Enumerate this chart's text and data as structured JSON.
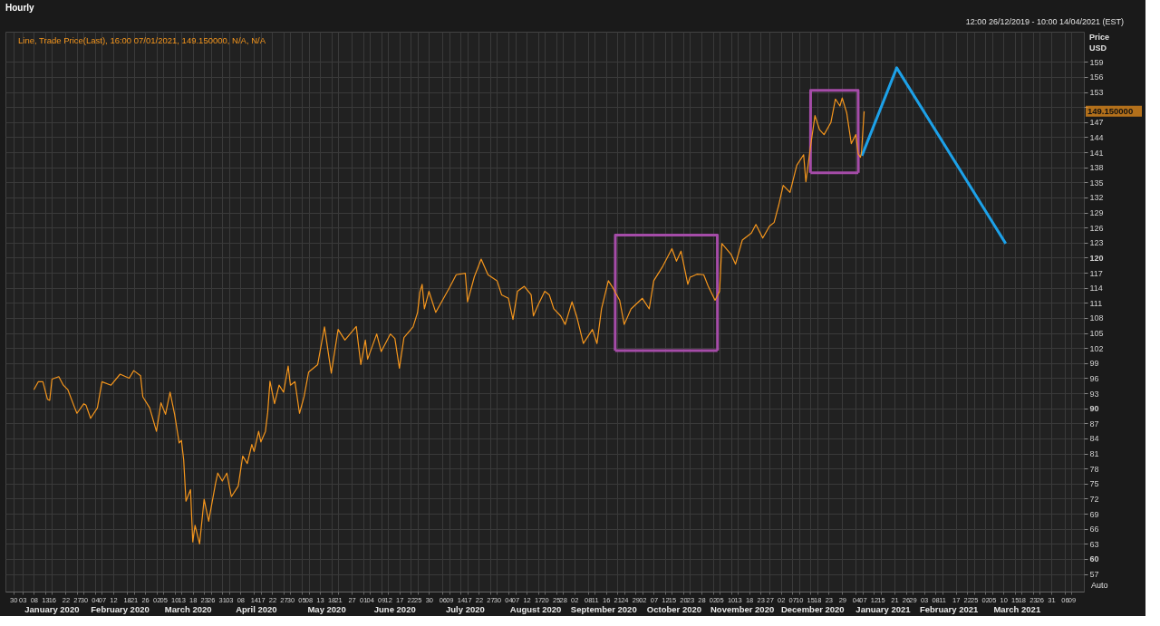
{
  "chart_data": {
    "type": "line",
    "title": "Hourly",
    "ylabel": "Price\nUSD",
    "annotations": [
      "12:00 26/12/2019 - 10:00 14/04/2021 (EST)",
      "149.150000",
      "Auto"
    ],
    "legend": "top left",
    "grid": true,
    "line_style": "solid",
    "marker": "none",
    "xlim": [
      "2019-12-26T12:00",
      "2021-04-14T10:00"
    ],
    "ylim": [
      53.5,
      165.0
    ],
    "yticks": [
      57,
      60,
      63,
      66,
      69,
      72,
      75,
      78,
      81,
      84,
      87,
      90,
      93,
      96,
      99,
      102,
      105,
      108,
      111,
      114,
      117,
      120,
      123,
      126,
      129,
      132,
      135,
      138,
      141,
      144,
      147,
      {
        "value": 150,
        "label": null
      },
      153,
      156,
      159
    ],
    "xticks": [
      {
        "value": "2019-12-30",
        "label": "30"
      },
      {
        "value": "2020-01-03",
        "label": "03"
      },
      {
        "value": "2020-01-08",
        "label": "08"
      },
      {
        "value": "2020-01-13",
        "label": "13"
      },
      {
        "value": "2020-01-16",
        "label": "16"
      },
      {
        "value": "2020-01-22",
        "label": "22"
      },
      {
        "value": "2020-01-27",
        "label": "27"
      },
      {
        "value": "2020-01-30",
        "label": "30"
      },
      {
        "value": "2020-02-04",
        "label": "04"
      },
      {
        "value": "2020-02-07",
        "label": "07"
      },
      {
        "value": "2020-02-12",
        "label": "12"
      },
      {
        "value": "2020-02-18",
        "label": "18"
      },
      {
        "value": "2020-02-21",
        "label": "21"
      },
      {
        "value": "2020-02-26",
        "label": "26"
      },
      {
        "value": "2020-03-02",
        "label": "02"
      },
      {
        "value": "2020-03-05",
        "label": "05"
      },
      {
        "value": "2020-03-10",
        "label": "10"
      },
      {
        "value": "2020-03-13",
        "label": "13"
      },
      {
        "value": "2020-03-18",
        "label": "18"
      },
      {
        "value": "2020-03-23",
        "label": "23"
      },
      {
        "value": "2020-03-26",
        "label": "26"
      },
      {
        "value": "2020-03-31",
        "label": "31"
      },
      {
        "value": "2020-04-03",
        "label": "03"
      },
      {
        "value": "2020-04-08",
        "label": "08"
      },
      {
        "value": "2020-04-14",
        "label": "14"
      },
      {
        "value": "2020-04-17",
        "label": "17"
      },
      {
        "value": "2020-04-22",
        "label": "22"
      },
      {
        "value": "2020-04-27",
        "label": "27"
      },
      {
        "value": "2020-04-30",
        "label": "30"
      },
      {
        "value": "2020-05-05",
        "label": "05"
      },
      {
        "value": "2020-05-08",
        "label": "08"
      },
      {
        "value": "2020-05-13",
        "label": "13"
      },
      {
        "value": "2020-05-18",
        "label": "18"
      },
      {
        "value": "2020-05-21",
        "label": "21"
      },
      {
        "value": "2020-05-27",
        "label": "27"
      },
      {
        "value": "2020-06-01",
        "label": "01"
      },
      {
        "value": "2020-06-04",
        "label": "04"
      },
      {
        "value": "2020-06-09",
        "label": "09"
      },
      {
        "value": "2020-06-12",
        "label": "12"
      },
      {
        "value": "2020-06-17",
        "label": "17"
      },
      {
        "value": "2020-06-22",
        "label": "22"
      },
      {
        "value": "2020-06-25",
        "label": "25"
      },
      {
        "value": "2020-06-30",
        "label": "30"
      },
      {
        "value": "2020-07-06",
        "label": "06"
      },
      {
        "value": "2020-07-09",
        "label": "09"
      },
      {
        "value": "2020-07-14",
        "label": "14"
      },
      {
        "value": "2020-07-17",
        "label": "17"
      },
      {
        "value": "2020-07-22",
        "label": "22"
      },
      {
        "value": "2020-07-27",
        "label": "27"
      },
      {
        "value": "2020-07-30",
        "label": "30"
      },
      {
        "value": "2020-08-04",
        "label": "04"
      },
      {
        "value": "2020-08-07",
        "label": "07"
      },
      {
        "value": "2020-08-12",
        "label": "12"
      },
      {
        "value": "2020-08-17",
        "label": "17"
      },
      {
        "value": "2020-08-20",
        "label": "20"
      },
      {
        "value": "2020-08-25",
        "label": "25"
      },
      {
        "value": "2020-08-28",
        "label": "28"
      },
      {
        "value": "2020-09-02",
        "label": "02"
      },
      {
        "value": "2020-09-08",
        "label": "08"
      },
      {
        "value": "2020-09-11",
        "label": "11"
      },
      {
        "value": "2020-09-16",
        "label": "16"
      },
      {
        "value": "2020-09-21",
        "label": "21"
      },
      {
        "value": "2020-09-24",
        "label": "24"
      },
      {
        "value": "2020-09-29",
        "label": "29"
      },
      {
        "value": "2020-10-02",
        "label": "02"
      },
      {
        "value": "2020-10-07",
        "label": "07"
      },
      {
        "value": "2020-10-12",
        "label": "12"
      },
      {
        "value": "2020-10-15",
        "label": "15"
      },
      {
        "value": "2020-10-20",
        "label": "20"
      },
      {
        "value": "2020-10-23",
        "label": "23"
      },
      {
        "value": "2020-10-28",
        "label": "28"
      },
      {
        "value": "2020-11-02",
        "label": "02"
      },
      {
        "value": "2020-11-05",
        "label": "05"
      },
      {
        "value": "2020-11-10",
        "label": "10"
      },
      {
        "value": "2020-11-13",
        "label": "13"
      },
      {
        "value": "2020-11-18",
        "label": "18"
      },
      {
        "value": "2020-11-23",
        "label": "23"
      },
      {
        "value": "2020-11-27",
        "label": "27"
      },
      {
        "value": "2020-12-02",
        "label": "02"
      },
      {
        "value": "2020-12-07",
        "label": "07"
      },
      {
        "value": "2020-12-10",
        "label": "10"
      },
      {
        "value": "2020-12-15",
        "label": "15"
      },
      {
        "value": "2020-12-18",
        "label": "18"
      },
      {
        "value": "2020-12-23",
        "label": "23"
      },
      {
        "value": "2020-12-29",
        "label": "29"
      },
      {
        "value": "2021-01-04",
        "label": "04"
      },
      {
        "value": "2021-01-07",
        "label": "07"
      },
      {
        "value": "2021-01-12",
        "label": "12"
      },
      {
        "value": "2021-01-15",
        "label": "15"
      },
      {
        "value": "2021-01-21",
        "label": "21"
      },
      {
        "value": "2021-01-26",
        "label": "26"
      },
      {
        "value": "2021-01-29",
        "label": "29"
      },
      {
        "value": "2021-02-03",
        "label": "03"
      },
      {
        "value": "2021-02-08",
        "label": "08"
      },
      {
        "value": "2021-02-11",
        "label": "11"
      },
      {
        "value": "2021-02-17",
        "label": "17"
      },
      {
        "value": "2021-02-22",
        "label": "22"
      },
      {
        "value": "2021-02-25",
        "label": "25"
      },
      {
        "value": "2021-03-02",
        "label": "02"
      },
      {
        "value": "2021-03-05",
        "label": "05"
      },
      {
        "value": "2021-03-10",
        "label": "10"
      },
      {
        "value": "2021-03-15",
        "label": "15"
      },
      {
        "value": "2021-03-18",
        "label": "18"
      },
      {
        "value": "2021-03-23",
        "label": "23"
      },
      {
        "value": "2021-03-26",
        "label": "26"
      },
      {
        "value": "2021-03-31",
        "label": "31"
      },
      {
        "value": "2021-04-06",
        "label": "06"
      },
      {
        "value": "2021-04-09",
        "label": "09"
      }
    ],
    "x2lim": [
      "2019-12-26T12:00",
      "2021-04-14T10:00"
    ],
    "x2ticks": [
      {
        "value": "2020-01-16",
        "label": "January 2020"
      },
      {
        "value": "2020-02-15",
        "label": "February 2020"
      },
      {
        "value": "2020-03-16",
        "label": "March 2020"
      },
      {
        "value": "2020-04-15",
        "label": "April 2020"
      },
      {
        "value": "2020-05-16",
        "label": "May 2020"
      },
      {
        "value": "2020-06-15",
        "label": "June 2020"
      },
      {
        "value": "2020-07-16",
        "label": "July 2020"
      },
      {
        "value": "2020-08-16",
        "label": "August 2020"
      },
      {
        "value": "2020-09-15",
        "label": "September 2020"
      },
      {
        "value": "2020-10-16",
        "label": "October 2020"
      },
      {
        "value": "2020-11-15",
        "label": "November 2020"
      },
      {
        "value": "2020-12-16",
        "label": "December 2020"
      },
      {
        "value": "2021-01-16",
        "label": "January 2021"
      },
      {
        "value": "2021-02-14",
        "label": "February 2021"
      },
      {
        "value": "2021-03-16",
        "label": "March 2021"
      }
    ],
    "series": [
      {
        "name": "Line, Trade Price(Last), 16:00 07/01/2021, 149.150000, N/A, N/A",
        "color": "#f5961d",
        "x": [
          "2020-01-08",
          "2020-01-10",
          "2020-01-12",
          "2020-01-14",
          "2020-01-15",
          "2020-01-16",
          "2020-01-19",
          "2020-01-21",
          "2020-01-23",
          "2020-01-26",
          "2020-01-27",
          "2020-01-30",
          "2020-01-31",
          "2020-02-02",
          "2020-02-05",
          "2020-02-07",
          "2020-02-11",
          "2020-02-15",
          "2020-02-19",
          "2020-02-21",
          "2020-02-24",
          "2020-02-25",
          "2020-02-28",
          "2020-03-02",
          "2020-03-04",
          "2020-03-06",
          "2020-03-08",
          "2020-03-10",
          "2020-03-12",
          "2020-03-13",
          "2020-03-14",
          "2020-03-15",
          "2020-03-17",
          "2020-03-18",
          "2020-03-19",
          "2020-03-21",
          "2020-03-23",
          "2020-03-25",
          "2020-03-28",
          "2020-03-29",
          "2020-03-31",
          "2020-04-02",
          "2020-04-04",
          "2020-04-07",
          "2020-04-09",
          "2020-04-11",
          "2020-04-13",
          "2020-04-14",
          "2020-04-16",
          "2020-04-17",
          "2020-04-19",
          "2020-04-20",
          "2020-04-21",
          "2020-04-23",
          "2020-04-25",
          "2020-04-27",
          "2020-04-29",
          "2020-04-30",
          "2020-05-02",
          "2020-05-04",
          "2020-05-06",
          "2020-05-08",
          "2020-05-12",
          "2020-05-15",
          "2020-05-18",
          "2020-05-21",
          "2020-05-24",
          "2020-05-29",
          "2020-05-31",
          "2020-06-02",
          "2020-06-03",
          "2020-06-07",
          "2020-06-09",
          "2020-06-13",
          "2020-06-15",
          "2020-06-17",
          "2020-06-19",
          "2020-06-23",
          "2020-06-25",
          "2020-06-26",
          "2020-06-27",
          "2020-06-28",
          "2020-06-30",
          "2020-07-03",
          "2020-07-09",
          "2020-07-12",
          "2020-07-16",
          "2020-07-17",
          "2020-07-20",
          "2020-07-23",
          "2020-07-26",
          "2020-07-30",
          "2020-08-01",
          "2020-08-04",
          "2020-08-06",
          "2020-08-08",
          "2020-08-11",
          "2020-08-14",
          "2020-08-15",
          "2020-08-17",
          "2020-08-20",
          "2020-08-22",
          "2020-08-24",
          "2020-08-27",
          "2020-08-29",
          "2020-09-01",
          "2020-09-03",
          "2020-09-06",
          "2020-09-10",
          "2020-09-12",
          "2020-09-14",
          "2020-09-17",
          "2020-09-19",
          "2020-09-22",
          "2020-09-24",
          "2020-09-27",
          "2020-10-02",
          "2020-10-05",
          "2020-10-07",
          "2020-10-11",
          "2020-10-15",
          "2020-10-17",
          "2020-10-19",
          "2020-10-22",
          "2020-10-23",
          "2020-10-26",
          "2020-10-29",
          "2020-10-31",
          "2020-11-03",
          "2020-11-05",
          "2020-11-06",
          "2020-11-10",
          "2020-11-12",
          "2020-11-15",
          "2020-11-19",
          "2020-11-21",
          "2020-11-24",
          "2020-11-27",
          "2020-11-29",
          "2020-12-01",
          "2020-12-03",
          "2020-12-06",
          "2020-12-09",
          "2020-12-12",
          "2020-12-13",
          "2020-12-15",
          "2020-12-17",
          "2020-12-19",
          "2020-12-21",
          "2020-12-24",
          "2020-12-26",
          "2020-12-28",
          "2020-12-29",
          "2020-12-31",
          "2021-01-02",
          "2021-01-04",
          "2021-01-05",
          "2021-01-06",
          "2021-01-06T12:00",
          "2021-01-07T10:00",
          "2021-01-07T16:00"
        ],
        "values": [
          93.7,
          95.3,
          95.3,
          91.8,
          91.6,
          95.8,
          96.3,
          94.6,
          93.7,
          90.1,
          89.0,
          90.9,
          90.6,
          88.0,
          90.1,
          95.3,
          94.6,
          96.8,
          96.0,
          97.5,
          96.5,
          92.3,
          90.1,
          85.4,
          91.1,
          88.8,
          93.2,
          88.8,
          83.1,
          83.6,
          79.7,
          71.5,
          73.8,
          63.4,
          66.7,
          63.0,
          71.9,
          67.5,
          75.0,
          77.1,
          75.5,
          77.1,
          72.4,
          74.5,
          80.5,
          79.0,
          82.8,
          81.4,
          85.4,
          83.3,
          85.4,
          89.2,
          95.4,
          90.9,
          94.6,
          93.2,
          98.4,
          94.6,
          95.3,
          89.0,
          92.3,
          97.2,
          98.7,
          106.2,
          97.0,
          105.7,
          103.6,
          106.3,
          98.7,
          103.6,
          99.8,
          104.8,
          101.3,
          104.8,
          103.9,
          98.0,
          104.1,
          106.2,
          109.1,
          113.1,
          114.7,
          109.8,
          113.3,
          109.1,
          114.0,
          116.6,
          116.9,
          111.2,
          116.2,
          119.7,
          116.6,
          115.4,
          112.6,
          111.9,
          107.7,
          113.3,
          114.3,
          112.6,
          108.4,
          110.5,
          113.3,
          112.6,
          109.8,
          108.4,
          106.7,
          111.2,
          108.4,
          102.9,
          105.7,
          102.9,
          109.8,
          115.4,
          114.0,
          111.5,
          106.7,
          109.8,
          111.9,
          109.8,
          115.4,
          118.3,
          121.8,
          119.3,
          121.3,
          114.7,
          116.1,
          116.7,
          116.6,
          114.3,
          111.5,
          113.3,
          122.8,
          120.7,
          118.7,
          123.5,
          124.9,
          126.6,
          123.9,
          126.3,
          127.0,
          130.4,
          134.4,
          133.0,
          138.4,
          140.5,
          135.1,
          142.0,
          148.3,
          145.5,
          144.5,
          146.9,
          151.6,
          150.2,
          151.8,
          148.8,
          142.7,
          144.5,
          140.7,
          140.0,
          141.0,
          147.6,
          149.15
        ]
      },
      {
        "color": "#1da1e8",
        "x": [
          "2021-01-06T16:00",
          "2021-01-22",
          "2021-03-11"
        ],
        "values": [
          140.3,
          157.8,
          122.8
        ]
      },
      {
        "color": "#a54ca8",
        "x": [
          "2020-09-20",
          "2020-09-20T02:00",
          "2020-11-04",
          "2020-11-04T02:00"
        ],
        "values": [
          101.5,
          124.5,
          124.5,
          101.5
        ]
      },
      {
        "color": "#a54ca8",
        "x": [
          "2020-09-20",
          "2020-11-04T02:00"
        ],
        "values": [
          101.5,
          101.5
        ]
      },
      {
        "color": "#a54ca8",
        "x": [
          "2020-12-15",
          "2020-12-15T02:00",
          "2021-01-05",
          "2021-01-05T02:00"
        ],
        "values": [
          136.9,
          153.3,
          153.3,
          136.9
        ]
      },
      {
        "color": "#a54ca8",
        "x": [
          "2020-12-15",
          "2021-01-05T02:00"
        ],
        "values": [
          136.9,
          136.9
        ]
      }
    ]
  }
}
